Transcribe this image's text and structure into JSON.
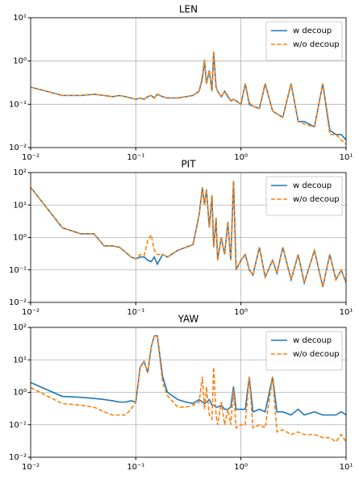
{
  "chart_data": [
    {
      "type": "line",
      "title": "LEN",
      "x": [
        0.01,
        0.02,
        0.03,
        0.04,
        0.05,
        0.06,
        0.07,
        0.08,
        0.09,
        0.1,
        0.11,
        0.12,
        0.13,
        0.14,
        0.15,
        0.16,
        0.18,
        0.2,
        0.25,
        0.3,
        0.35,
        0.4,
        0.43,
        0.45,
        0.47,
        0.5,
        0.53,
        0.55,
        0.58,
        0.6,
        0.65,
        0.7,
        0.75,
        0.8,
        0.85,
        0.9,
        1.0,
        1.1,
        1.2,
        1.3,
        1.5,
        1.7,
        2.0,
        2.2,
        2.5,
        3.0,
        3.5,
        4.0,
        5.0,
        6.0,
        7.0,
        8.0,
        9.0,
        10.0
      ],
      "series": [
        {
          "name": "w decoup",
          "color": "#1f77b4",
          "linestyle": "solid",
          "values": [
            0.25,
            0.16,
            0.16,
            0.17,
            0.16,
            0.15,
            0.16,
            0.15,
            0.14,
            0.13,
            0.14,
            0.13,
            0.15,
            0.16,
            0.14,
            0.17,
            0.15,
            0.14,
            0.14,
            0.15,
            0.16,
            0.2,
            0.4,
            1.0,
            0.3,
            0.6,
            0.2,
            1.6,
            0.25,
            0.2,
            0.15,
            0.2,
            0.15,
            0.12,
            0.13,
            0.12,
            0.1,
            0.3,
            0.1,
            0.09,
            0.08,
            0.3,
            0.07,
            0.06,
            0.05,
            0.3,
            0.04,
            0.04,
            0.03,
            0.3,
            0.025,
            0.02,
            0.02,
            0.015
          ]
        },
        {
          "name": "w/o decoup",
          "color": "#ff7f0e",
          "linestyle": "dashed",
          "values": [
            0.25,
            0.16,
            0.16,
            0.17,
            0.16,
            0.15,
            0.16,
            0.15,
            0.14,
            0.13,
            0.14,
            0.13,
            0.15,
            0.16,
            0.14,
            0.17,
            0.15,
            0.14,
            0.14,
            0.15,
            0.16,
            0.2,
            0.45,
            1.1,
            0.3,
            0.6,
            0.2,
            1.7,
            0.25,
            0.2,
            0.15,
            0.2,
            0.16,
            0.12,
            0.13,
            0.12,
            0.1,
            0.3,
            0.11,
            0.09,
            0.08,
            0.3,
            0.07,
            0.06,
            0.05,
            0.3,
            0.04,
            0.035,
            0.03,
            0.3,
            0.02,
            0.02,
            0.015,
            0.012
          ]
        }
      ],
      "xlim": [
        0.01,
        10
      ],
      "ylim": [
        0.01,
        10
      ],
      "xticks": [
        {
          "value": 0.01,
          "label": "10⁻²"
        },
        {
          "value": 0.1,
          "label": "10⁻¹"
        },
        {
          "value": 1,
          "label": "10⁰"
        },
        {
          "value": 10,
          "label": "10¹"
        }
      ],
      "yticks": [
        {
          "value": 0.01,
          "label": "10⁻²"
        },
        {
          "value": 0.1,
          "label": "10⁻¹"
        },
        {
          "value": 1,
          "label": "10⁰"
        },
        {
          "value": 10,
          "label": "10¹"
        }
      ],
      "log_x": true,
      "log_y": true,
      "grid": true,
      "legend": "upper right"
    },
    {
      "type": "line",
      "title": "PIT",
      "x": [
        0.01,
        0.02,
        0.03,
        0.04,
        0.05,
        0.06,
        0.07,
        0.08,
        0.09,
        0.1,
        0.11,
        0.12,
        0.13,
        0.14,
        0.15,
        0.16,
        0.18,
        0.2,
        0.25,
        0.3,
        0.35,
        0.4,
        0.43,
        0.45,
        0.47,
        0.5,
        0.53,
        0.55,
        0.58,
        0.6,
        0.65,
        0.7,
        0.75,
        0.8,
        0.85,
        0.9,
        1.0,
        1.1,
        1.2,
        1.3,
        1.5,
        1.7,
        2.0,
        2.2,
        2.5,
        3.0,
        3.5,
        4.0,
        5.0,
        6.0,
        7.0,
        8.0,
        9.0,
        10.0
      ],
      "series": [
        {
          "name": "w decoup",
          "color": "#1f77b4",
          "linestyle": "solid",
          "values": [
            35,
            2,
            1.3,
            1.3,
            0.55,
            0.55,
            0.5,
            0.35,
            0.25,
            0.22,
            0.25,
            0.25,
            0.2,
            0.18,
            0.25,
            0.15,
            0.3,
            0.25,
            0.4,
            0.5,
            0.6,
            5,
            35,
            10,
            30,
            2,
            20,
            0.5,
            4,
            0.2,
            1,
            0.3,
            3,
            0.2,
            55,
            0.1,
            0.2,
            0.3,
            0.1,
            0.07,
            0.5,
            0.06,
            0.2,
            0.08,
            0.5,
            0.05,
            0.3,
            0.04,
            0.4,
            0.03,
            0.3,
            0.05,
            0.1,
            0.04
          ]
        },
        {
          "name": "w/o decoup",
          "color": "#ff7f0e",
          "linestyle": "dashed",
          "values": [
            35,
            2,
            1.3,
            1.3,
            0.55,
            0.55,
            0.5,
            0.35,
            0.25,
            0.22,
            0.3,
            0.28,
            0.8,
            1.2,
            0.4,
            0.3,
            0.3,
            0.25,
            0.4,
            0.5,
            0.6,
            5,
            35,
            10,
            30,
            2,
            20,
            0.5,
            4,
            0.2,
            1,
            0.3,
            3,
            0.2,
            55,
            0.1,
            0.2,
            0.3,
            0.1,
            0.07,
            0.5,
            0.06,
            0.2,
            0.08,
            0.5,
            0.05,
            0.3,
            0.04,
            0.4,
            0.03,
            0.3,
            0.05,
            0.1,
            0.04
          ]
        }
      ],
      "xlim": [
        0.01,
        10
      ],
      "ylim": [
        0.01,
        100
      ],
      "xticks": [
        {
          "value": 0.01,
          "label": "10⁻²"
        },
        {
          "value": 0.1,
          "label": "10⁻¹"
        },
        {
          "value": 1,
          "label": "10⁰"
        },
        {
          "value": 10,
          "label": "10¹"
        }
      ],
      "yticks": [
        {
          "value": 0.01,
          "label": "10⁻²"
        },
        {
          "value": 0.1,
          "label": "10⁻¹"
        },
        {
          "value": 1,
          "label": "10⁰"
        },
        {
          "value": 10,
          "label": "10¹"
        },
        {
          "value": 100,
          "label": "10²"
        }
      ],
      "log_x": true,
      "log_y": true,
      "grid": true,
      "legend": "upper right"
    },
    {
      "type": "line",
      "title": "YAW",
      "x": [
        0.01,
        0.02,
        0.03,
        0.04,
        0.05,
        0.06,
        0.07,
        0.08,
        0.09,
        0.1,
        0.11,
        0.12,
        0.13,
        0.14,
        0.15,
        0.16,
        0.18,
        0.2,
        0.25,
        0.3,
        0.35,
        0.4,
        0.43,
        0.45,
        0.47,
        0.5,
        0.53,
        0.55,
        0.58,
        0.6,
        0.65,
        0.7,
        0.75,
        0.8,
        0.85,
        0.9,
        1.0,
        1.1,
        1.2,
        1.3,
        1.5,
        1.7,
        2.0,
        2.2,
        2.5,
        3.0,
        3.5,
        4.0,
        5.0,
        6.0,
        7.0,
        8.0,
        9.0,
        10.0
      ],
      "series": [
        {
          "name": "w decoup",
          "color": "#1f77b4",
          "linestyle": "solid",
          "values": [
            2,
            0.75,
            0.7,
            0.65,
            0.6,
            0.55,
            0.5,
            0.5,
            0.55,
            0.5,
            6,
            9,
            4,
            25,
            55,
            55,
            3,
            1,
            0.6,
            0.5,
            0.45,
            0.6,
            0.5,
            0.45,
            0.5,
            0.6,
            0.4,
            0.4,
            0.35,
            0.35,
            0.4,
            0.3,
            0.3,
            0.35,
            1.5,
            0.3,
            0.3,
            0.3,
            3,
            0.25,
            0.3,
            0.25,
            3,
            0.25,
            0.25,
            0.2,
            0.3,
            0.2,
            0.25,
            0.2,
            0.2,
            0.2,
            0.25,
            0.2
          ]
        },
        {
          "name": "w/o decoup",
          "color": "#ff7f0e",
          "linestyle": "dashed",
          "values": [
            1.4,
            0.45,
            0.4,
            0.35,
            0.25,
            0.2,
            0.2,
            0.2,
            0.3,
            0.5,
            6,
            9,
            4,
            25,
            55,
            55,
            2,
            0.8,
            0.35,
            0.35,
            0.4,
            0.5,
            3,
            0.3,
            1.5,
            0.2,
            0.15,
            6,
            0.2,
            0.1,
            0.5,
            0.1,
            0.3,
            0.1,
            1.2,
            0.08,
            0.1,
            0.1,
            3,
            0.08,
            0.1,
            0.08,
            3,
            0.06,
            0.07,
            0.05,
            0.06,
            0.05,
            0.05,
            0.04,
            0.04,
            0.03,
            0.05,
            0.03
          ]
        }
      ],
      "xlim": [
        0.01,
        10
      ],
      "ylim": [
        0.01,
        100
      ],
      "xticks": [
        {
          "value": 0.01,
          "label": "10⁻²"
        },
        {
          "value": 0.1,
          "label": "10⁻¹"
        },
        {
          "value": 1,
          "label": "10⁰"
        },
        {
          "value": 10,
          "label": "10¹"
        }
      ],
      "yticks": [
        {
          "value": 0.01,
          "label": "10⁻²"
        },
        {
          "value": 0.1,
          "label": "10⁻¹"
        },
        {
          "value": 1,
          "label": "10⁰"
        },
        {
          "value": 10,
          "label": "10¹"
        },
        {
          "value": 100,
          "label": "10²"
        }
      ],
      "log_x": true,
      "log_y": true,
      "grid": true,
      "legend": "upper right"
    }
  ]
}
